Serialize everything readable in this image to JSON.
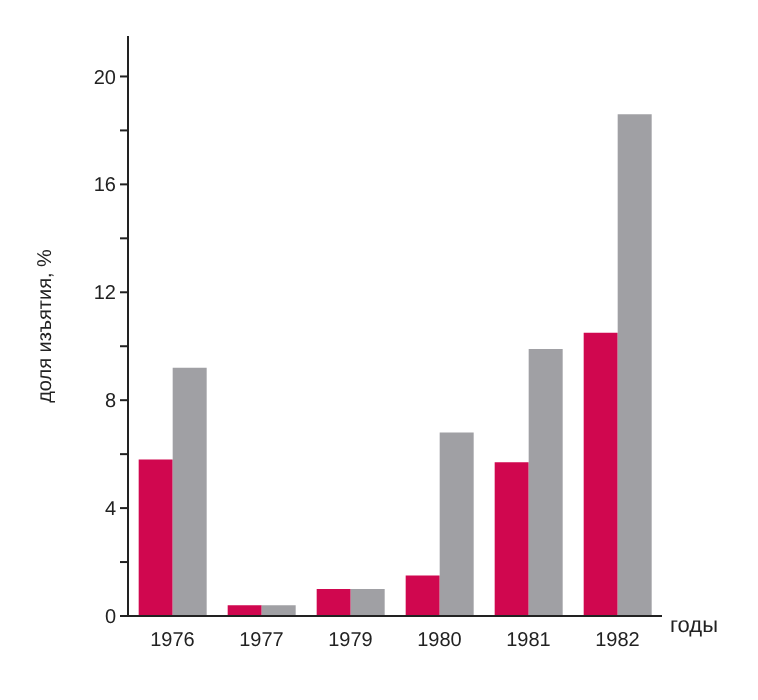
{
  "chart_data": {
    "type": "bar",
    "xlabel": "годы",
    "ylabel": "доля изъятия, %",
    "categories": [
      "1976",
      "1977",
      "1979",
      "1980",
      "1981",
      "1982"
    ],
    "series": [
      {
        "color": "#d0074f",
        "values": [
          5.8,
          0.4,
          1.0,
          1.5,
          5.7,
          10.5
        ]
      },
      {
        "color": "#a0a0a4",
        "values": [
          9.2,
          0.4,
          1.0,
          6.8,
          9.9,
          18.6
        ]
      }
    ],
    "ylim": [
      0,
      21.5
    ],
    "yticks": [
      0,
      {
        "value": 2,
        "label": null
      },
      4,
      {
        "value": 6,
        "label": null
      },
      8,
      {
        "value": 10,
        "label": null
      },
      12,
      {
        "value": 14,
        "label": null
      },
      16,
      {
        "value": 18,
        "label": null
      },
      20
    ],
    "grid": false,
    "legend": false
  }
}
